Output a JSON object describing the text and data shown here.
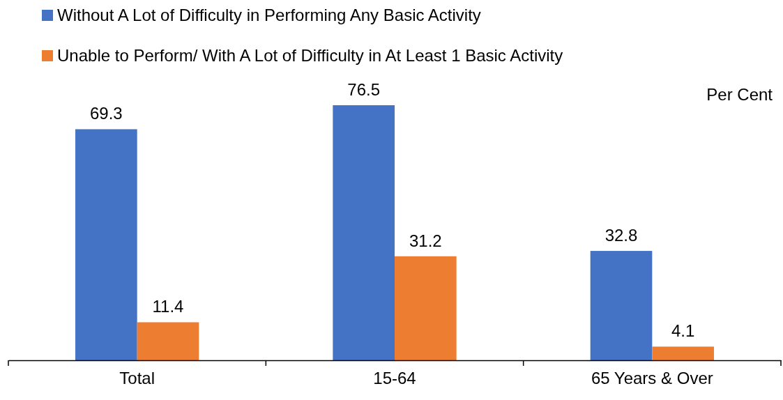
{
  "chart_data": {
    "type": "bar",
    "ylabel": "Per Cent",
    "categories": [
      "Total",
      "15-64",
      "65 Years & Over"
    ],
    "series": [
      {
        "name": "Without A Lot of Difficulty in Performing Any Basic Activity",
        "color": "#4472c4",
        "values": [
          69.3,
          76.5,
          32.8
        ]
      },
      {
        "name": "Unable to Perform/ With A Lot of Difficulty in At Least 1 Basic Activity",
        "color": "#ed7d31",
        "values": [
          11.4,
          31.2,
          4.1
        ]
      }
    ],
    "data_labels": true,
    "legend": "top left",
    "grid": false
  }
}
